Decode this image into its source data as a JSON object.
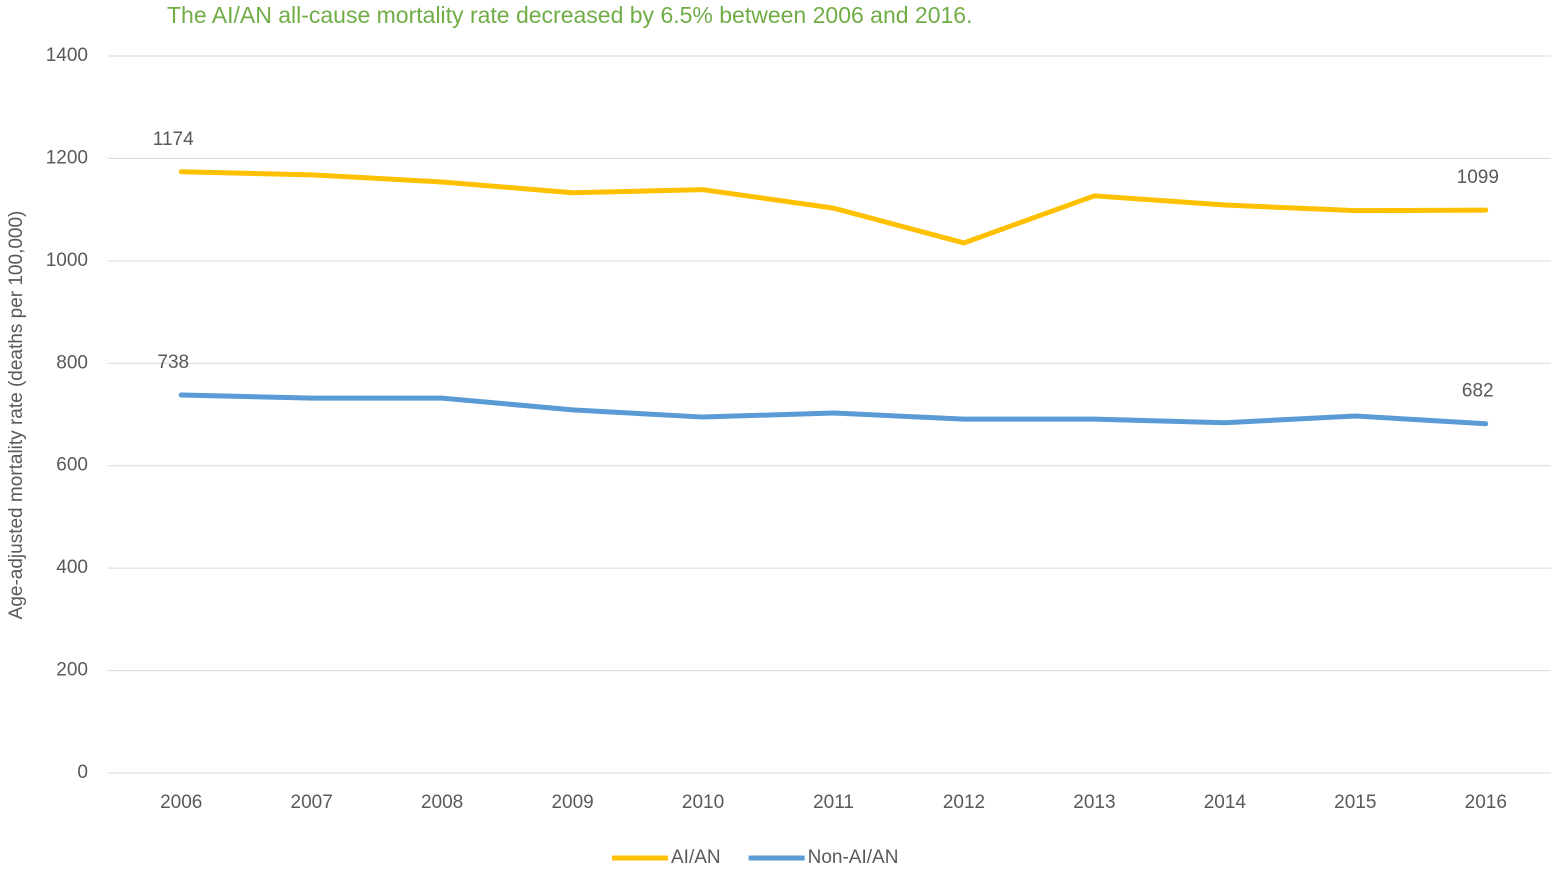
{
  "chart_data": {
    "type": "line",
    "title": "The AI/AN all-cause mortality rate decreased by 6.5% between 2006 and 2016.",
    "y_label": "Age-adjusted mortality rate (deaths per 100,000)",
    "categories": [
      "2006",
      "2007",
      "2008",
      "2009",
      "2010",
      "2011",
      "2012",
      "2013",
      "2014",
      "2015",
      "2016"
    ],
    "series": [
      {
        "name": "AI/AN",
        "color": "#FFC000",
        "values": [
          1174,
          1168,
          1154,
          1133,
          1139,
          1103,
          1035,
          1127,
          1109,
          1098,
          1099
        ]
      },
      {
        "name": "Non-AI/AN",
        "color": "#5B9BD5",
        "values": [
          738,
          732,
          732,
          709,
          695,
          703,
          691,
          691,
          684,
          697,
          682
        ]
      }
    ],
    "ylim": [
      0,
      1400
    ],
    "yticks": [
      0,
      200,
      400,
      600,
      800,
      1000,
      1200,
      1400
    ],
    "grid": true,
    "legend": "bottom"
  }
}
